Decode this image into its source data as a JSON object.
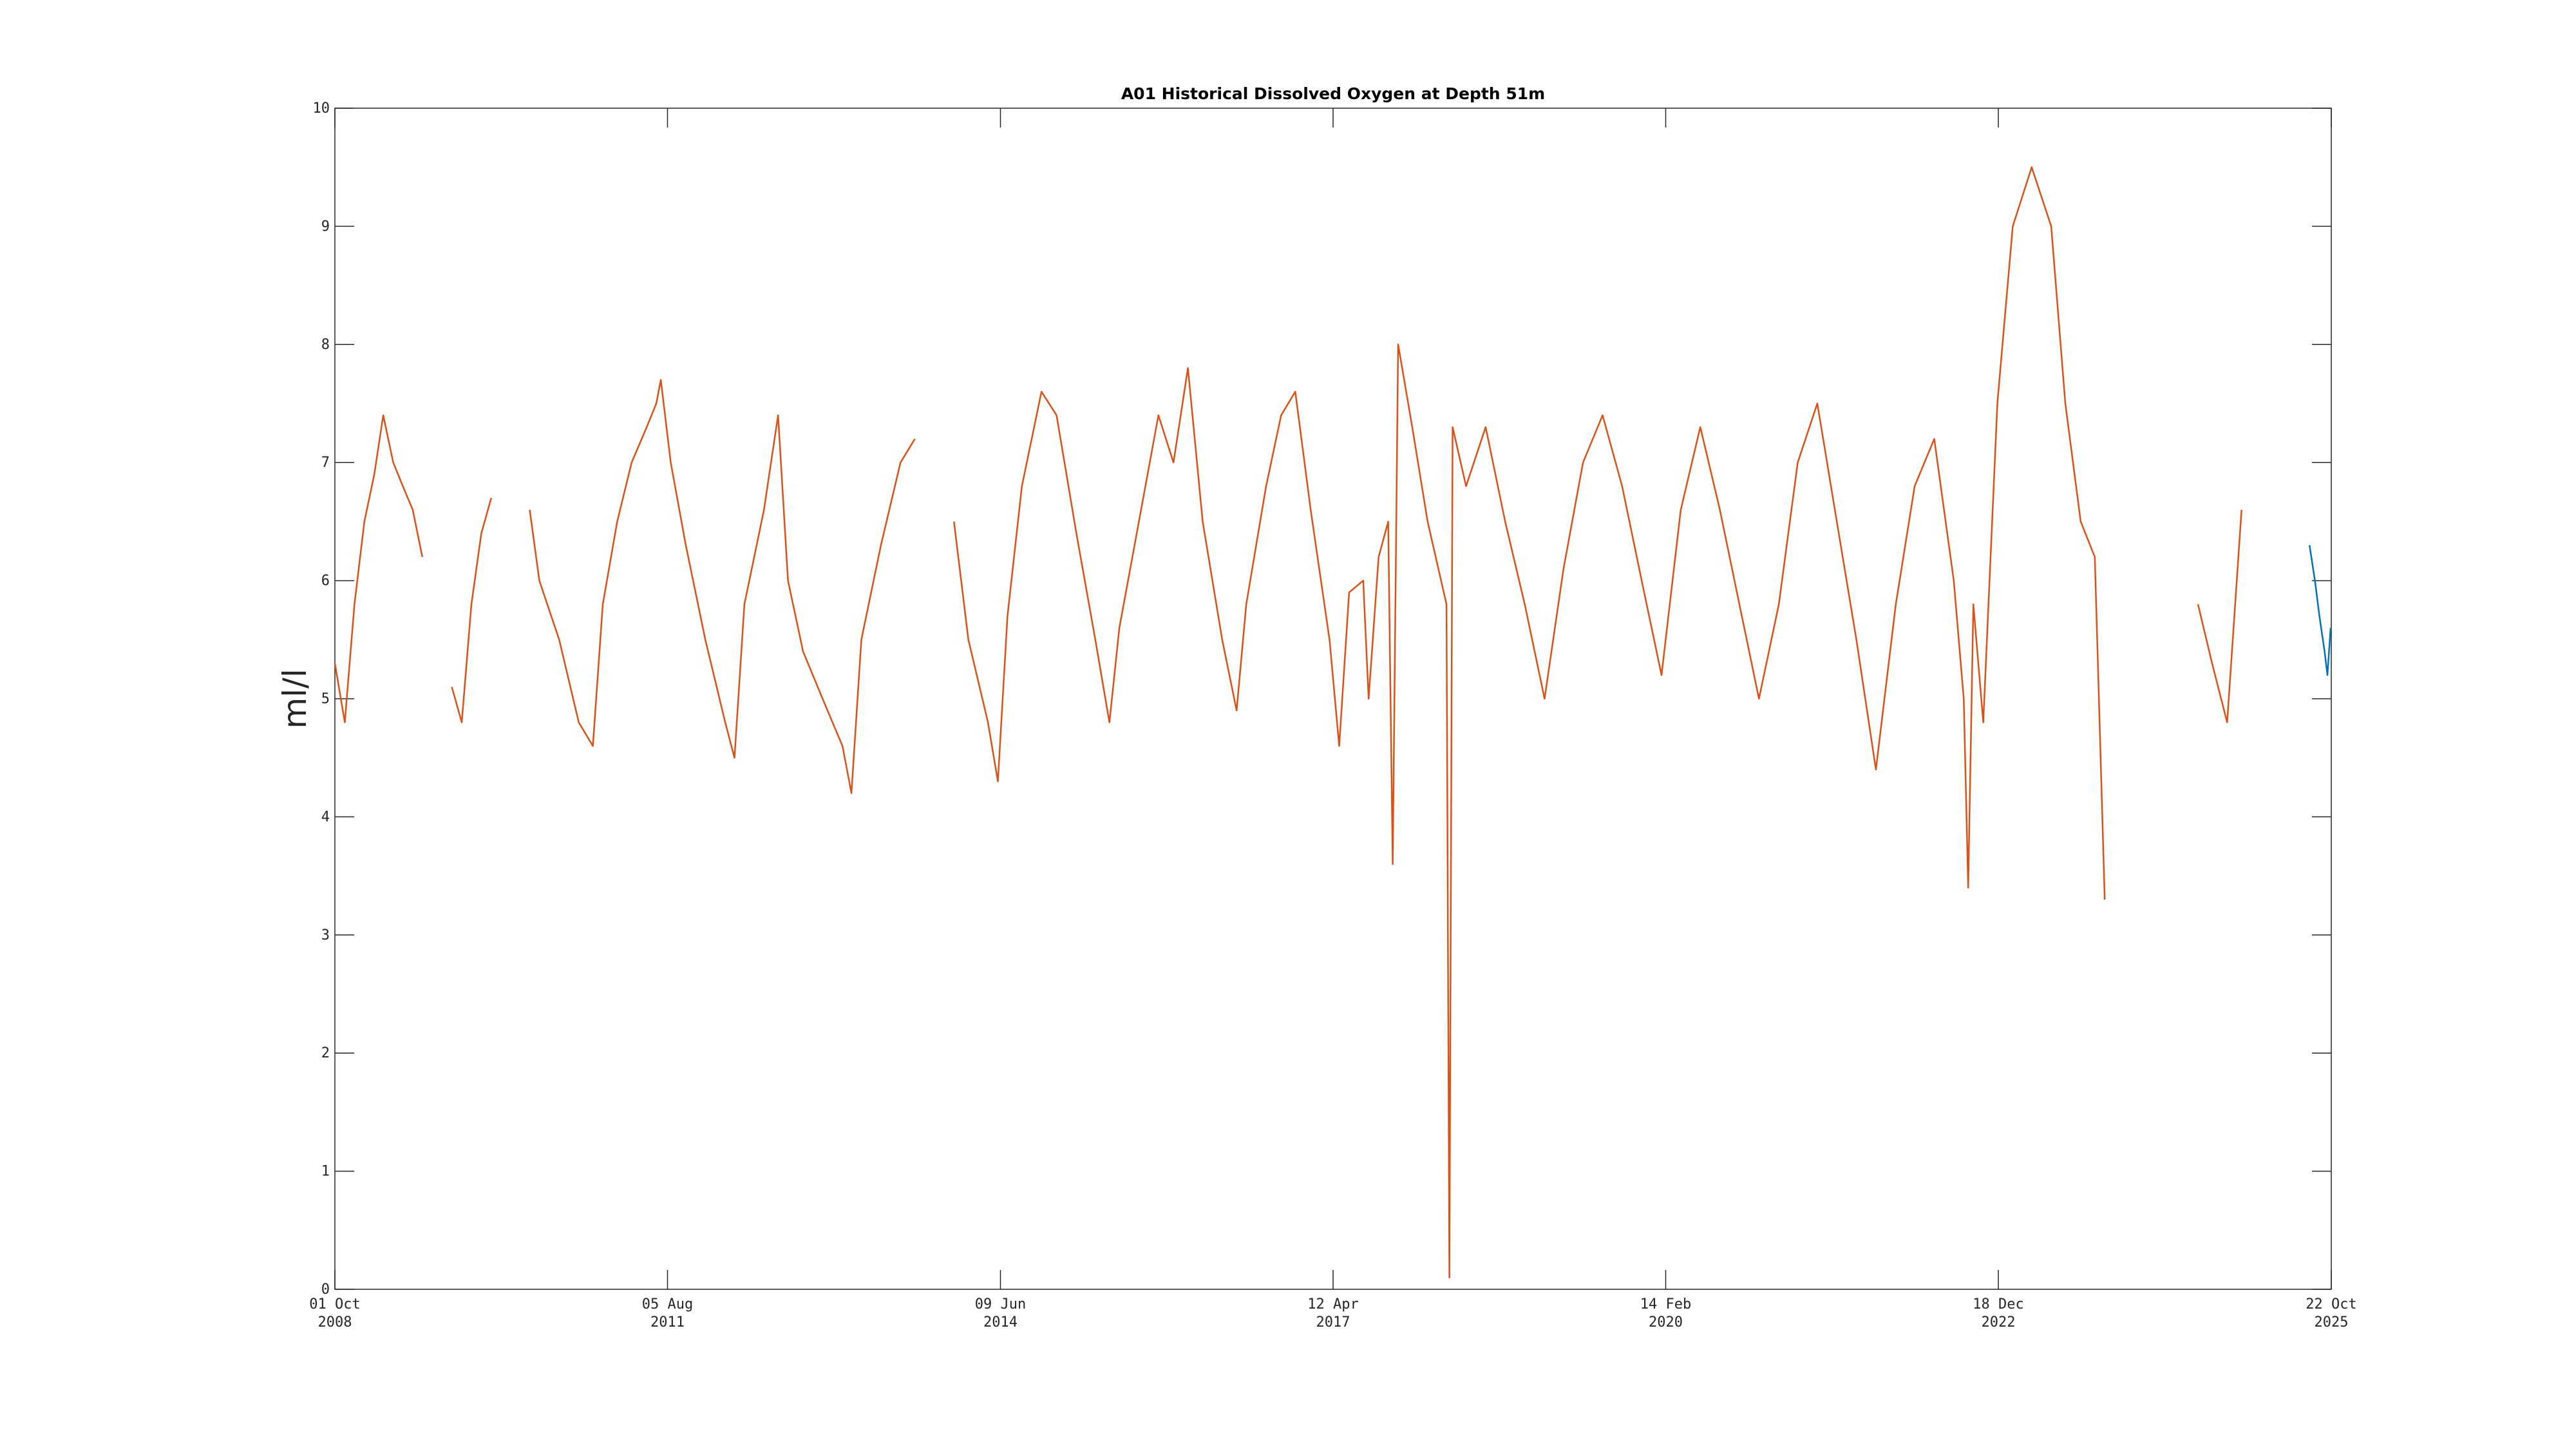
{
  "chart_data": {
    "type": "line",
    "title": "A01 Historical Dissolved Oxygen at Depth 51m",
    "ylabel": "ml/l",
    "xlabel": "",
    "xlim": [
      "2008-10-01",
      "2025-10-22"
    ],
    "ylim": [
      0,
      10
    ],
    "grid": false,
    "legend": "none",
    "y_ticks": [
      "0",
      "1",
      "2",
      "3",
      "4",
      "5",
      "6",
      "7",
      "8",
      "9",
      "10"
    ],
    "x_ticks": [
      {
        "date": "2008-10-01",
        "line1": "01 Oct",
        "line2": "2008"
      },
      {
        "date": "2011-08-05",
        "line1": "05 Aug",
        "line2": "2011"
      },
      {
        "date": "2014-06-09",
        "line1": "09 Jun",
        "line2": "2014"
      },
      {
        "date": "2017-04-12",
        "line1": "12 Apr",
        "line2": "2017"
      },
      {
        "date": "2020-02-14",
        "line1": "14 Feb",
        "line2": "2020"
      },
      {
        "date": "2022-12-18",
        "line1": "18 Dec",
        "line2": "2022"
      },
      {
        "date": "2025-10-22",
        "line1": "22 Oct",
        "line2": "2025"
      }
    ],
    "series": [
      {
        "color": "#D95319",
        "segments": [
          [
            [
              "2008-10-01",
              5.3
            ],
            [
              "2008-11-01",
              4.8
            ],
            [
              "2008-12-01",
              5.8
            ],
            [
              "2009-01-01",
              6.5
            ],
            [
              "2009-02-01",
              6.9
            ],
            [
              "2009-03-01",
              7.4
            ],
            [
              "2009-04-01",
              7.0
            ],
            [
              "2009-05-01",
              6.8
            ],
            [
              "2009-06-01",
              6.6
            ],
            [
              "2009-07-01",
              6.2
            ]
          ],
          [
            [
              "2009-10-01",
              5.1
            ],
            [
              "2009-11-01",
              4.8
            ],
            [
              "2009-12-01",
              5.8
            ],
            [
              "2010-01-01",
              6.4
            ],
            [
              "2010-02-01",
              6.7
            ]
          ],
          [
            [
              "2010-06-01",
              6.6
            ],
            [
              "2010-07-01",
              6.0
            ],
            [
              "2010-09-01",
              5.5
            ],
            [
              "2010-11-01",
              4.8
            ],
            [
              "2010-12-15",
              4.6
            ],
            [
              "2011-01-15",
              5.8
            ],
            [
              "2011-03-01",
              6.5
            ],
            [
              "2011-04-15",
              7.0
            ],
            [
              "2011-06-01",
              7.3
            ],
            [
              "2011-07-01",
              7.5
            ],
            [
              "2011-07-15",
              7.7
            ],
            [
              "2011-08-15",
              7.0
            ],
            [
              "2011-10-01",
              6.3
            ],
            [
              "2011-12-01",
              5.5
            ],
            [
              "2012-02-01",
              4.8
            ],
            [
              "2012-03-01",
              4.5
            ],
            [
              "2012-04-01",
              5.8
            ],
            [
              "2012-06-01",
              6.6
            ],
            [
              "2012-07-15",
              7.4
            ],
            [
              "2012-08-15",
              6.0
            ],
            [
              "2012-10-01",
              5.4
            ],
            [
              "2012-12-01",
              5.0
            ],
            [
              "2013-02-01",
              4.6
            ],
            [
              "2013-03-01",
              4.2
            ],
            [
              "2013-04-01",
              5.5
            ],
            [
              "2013-06-01",
              6.3
            ],
            [
              "2013-08-01",
              7.0
            ],
            [
              "2013-09-15",
              7.2
            ]
          ],
          [
            [
              "2014-01-15",
              6.5
            ],
            [
              "2014-03-01",
              5.5
            ],
            [
              "2014-05-01",
              4.8
            ],
            [
              "2014-06-01",
              4.3
            ],
            [
              "2014-07-01",
              5.7
            ],
            [
              "2014-08-15",
              6.8
            ],
            [
              "2014-10-15",
              7.6
            ],
            [
              "2014-12-01",
              7.4
            ],
            [
              "2015-02-01",
              6.4
            ],
            [
              "2015-04-01",
              5.5
            ],
            [
              "2015-05-15",
              4.8
            ],
            [
              "2015-06-15",
              5.6
            ],
            [
              "2015-08-15",
              6.5
            ],
            [
              "2015-10-15",
              7.4
            ],
            [
              "2015-12-01",
              7.0
            ],
            [
              "2016-01-15",
              7.8
            ],
            [
              "2016-03-01",
              6.5
            ],
            [
              "2016-05-01",
              5.5
            ],
            [
              "2016-06-15",
              4.9
            ],
            [
              "2016-07-15",
              5.8
            ],
            [
              "2016-09-15",
              6.8
            ],
            [
              "2016-11-01",
              7.4
            ],
            [
              "2016-12-15",
              7.6
            ],
            [
              "2017-02-01",
              6.6
            ],
            [
              "2017-04-01",
              5.5
            ],
            [
              "2017-05-01",
              4.6
            ],
            [
              "2017-06-01",
              5.9
            ],
            [
              "2017-07-15",
              6.0
            ],
            [
              "2017-08-01",
              5.0
            ],
            [
              "2017-09-01",
              6.2
            ],
            [
              "2017-10-01",
              6.5
            ],
            [
              "2017-10-15",
              3.6
            ],
            [
              "2017-11-01",
              8.0
            ],
            [
              "2017-12-15",
              7.3
            ],
            [
              "2018-02-01",
              6.5
            ],
            [
              "2018-04-01",
              5.8
            ],
            [
              "2018-04-10",
              0.1
            ],
            [
              "2018-04-20",
              7.3
            ],
            [
              "2018-06-01",
              6.8
            ],
            [
              "2018-08-01",
              7.3
            ],
            [
              "2018-10-01",
              6.5
            ],
            [
              "2018-12-01",
              5.8
            ],
            [
              "2019-02-01",
              5.0
            ],
            [
              "2019-04-01",
              6.1
            ],
            [
              "2019-06-01",
              7.0
            ],
            [
              "2019-08-01",
              7.4
            ],
            [
              "2019-10-01",
              6.8
            ],
            [
              "2019-12-01",
              6.0
            ],
            [
              "2020-02-01",
              5.2
            ],
            [
              "2020-04-01",
              6.6
            ],
            [
              "2020-06-01",
              7.3
            ],
            [
              "2020-08-01",
              6.6
            ],
            [
              "2020-10-01",
              5.8
            ],
            [
              "2020-12-01",
              5.0
            ],
            [
              "2021-02-01",
              5.8
            ],
            [
              "2021-04-01",
              7.0
            ],
            [
              "2021-06-01",
              7.5
            ],
            [
              "2021-08-01",
              6.5
            ],
            [
              "2021-10-01",
              5.5
            ],
            [
              "2021-12-01",
              4.4
            ],
            [
              "2022-02-01",
              5.8
            ],
            [
              "2022-04-01",
              6.8
            ],
            [
              "2022-06-01",
              7.2
            ],
            [
              "2022-08-01",
              6.0
            ],
            [
              "2022-09-01",
              5.0
            ],
            [
              "2022-09-15",
              3.4
            ],
            [
              "2022-10-01",
              5.8
            ],
            [
              "2022-11-01",
              4.8
            ],
            [
              "2022-12-15",
              7.5
            ],
            [
              "2023-02-01",
              9.0
            ],
            [
              "2023-04-01",
              9.5
            ],
            [
              "2023-06-01",
              9.0
            ],
            [
              "2023-07-15",
              7.5
            ],
            [
              "2023-09-01",
              6.5
            ],
            [
              "2023-10-15",
              6.2
            ],
            [
              "2023-11-15",
              3.3
            ]
          ],
          [
            [
              "2024-09-01",
              5.8
            ],
            [
              "2024-10-15",
              5.3
            ],
            [
              "2024-12-01",
              4.8
            ],
            [
              "2025-01-15",
              6.6
            ]
          ]
        ]
      },
      {
        "color": "#0072BD",
        "segments": [
          [
            [
              "2025-08-15",
              6.3
            ],
            [
              "2025-09-01",
              6.0
            ],
            [
              "2025-09-15",
              5.7
            ],
            [
              "2025-10-01",
              5.4
            ],
            [
              "2025-10-10",
              5.2
            ],
            [
              "2025-10-20",
              5.6
            ]
          ]
        ]
      }
    ]
  }
}
